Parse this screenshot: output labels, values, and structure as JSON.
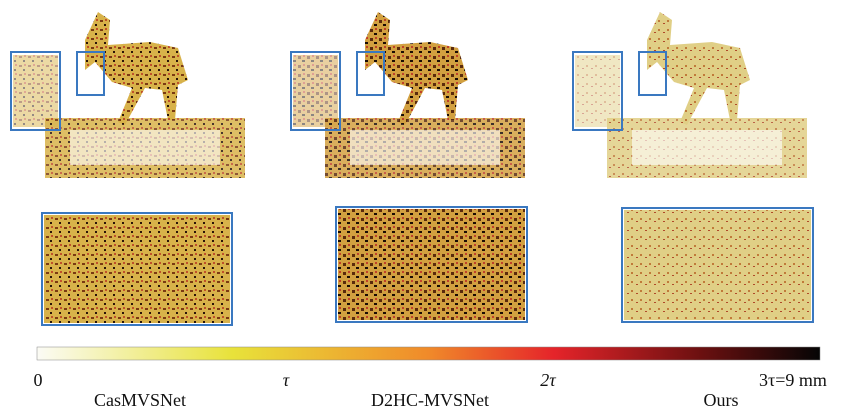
{
  "colorbar": {
    "labels": [
      "0",
      "τ",
      "2τ",
      "3τ=9 mm"
    ]
  },
  "methods": [
    "CasMVSNet",
    "D2HC-MVSNet",
    "Ours"
  ]
}
